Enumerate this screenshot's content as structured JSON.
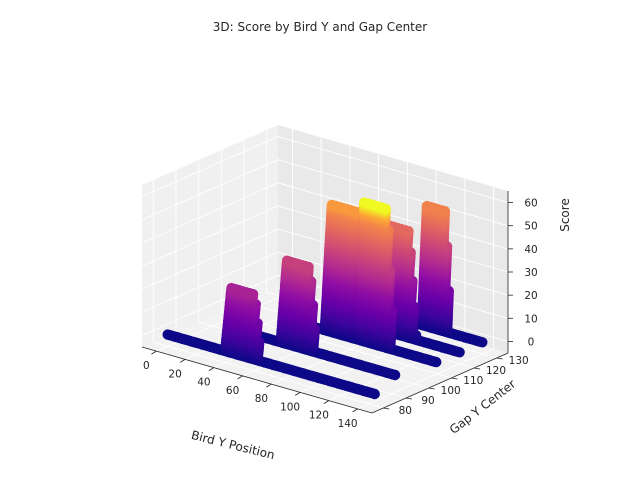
{
  "chart_data": {
    "type": "scatter3d",
    "title": "3D: Score by Bird Y and Gap Center",
    "xlabel": "Bird Y Position",
    "ylabel": "Gap Y Center",
    "zlabel": "Score",
    "xlim": [
      -10,
      150
    ],
    "ylim": [
      75,
      135
    ],
    "zlim": [
      -5,
      65
    ],
    "x_ticks": [
      0,
      20,
      40,
      60,
      80,
      100,
      120,
      140
    ],
    "y_ticks": [
      80,
      90,
      100,
      110,
      120,
      130
    ],
    "z_ticks": [
      0,
      10,
      20,
      30,
      40,
      50,
      60
    ],
    "colormap": "plasma",
    "color_by": "Score",
    "grid": true,
    "series": [
      {
        "gap_y": 80,
        "floor": {
          "x": [
            0,
            145
          ],
          "score": 0
        },
        "columns": [
          {
            "x": [
              40,
              65
            ],
            "score_max": 28
          }
        ]
      },
      {
        "gap_y": 95,
        "floor": {
          "x": [
            25,
            135
          ],
          "score": 0
        },
        "columns": [
          {
            "x": [
              55,
              80
            ],
            "score_max": 36
          }
        ]
      },
      {
        "gap_y": 110,
        "floor": {
          "x": [
            45,
            140
          ],
          "score": 0
        },
        "columns": [
          {
            "x": [
              62,
              90
            ],
            "score_max": 55
          },
          {
            "x": [
              85,
              110
            ],
            "score_max": 60
          }
        ]
      },
      {
        "gap_y": 120,
        "floor": {
          "x": [
            65,
            140
          ],
          "score": 0
        },
        "columns": [
          {
            "x": [
              82,
              110
            ],
            "score_max": 46
          }
        ]
      },
      {
        "gap_y": 130,
        "floor": {
          "x": [
            80,
            140
          ],
          "score": 0
        },
        "columns": [
          {
            "x": [
              98,
              118
            ],
            "score_max": 52
          }
        ]
      }
    ]
  }
}
